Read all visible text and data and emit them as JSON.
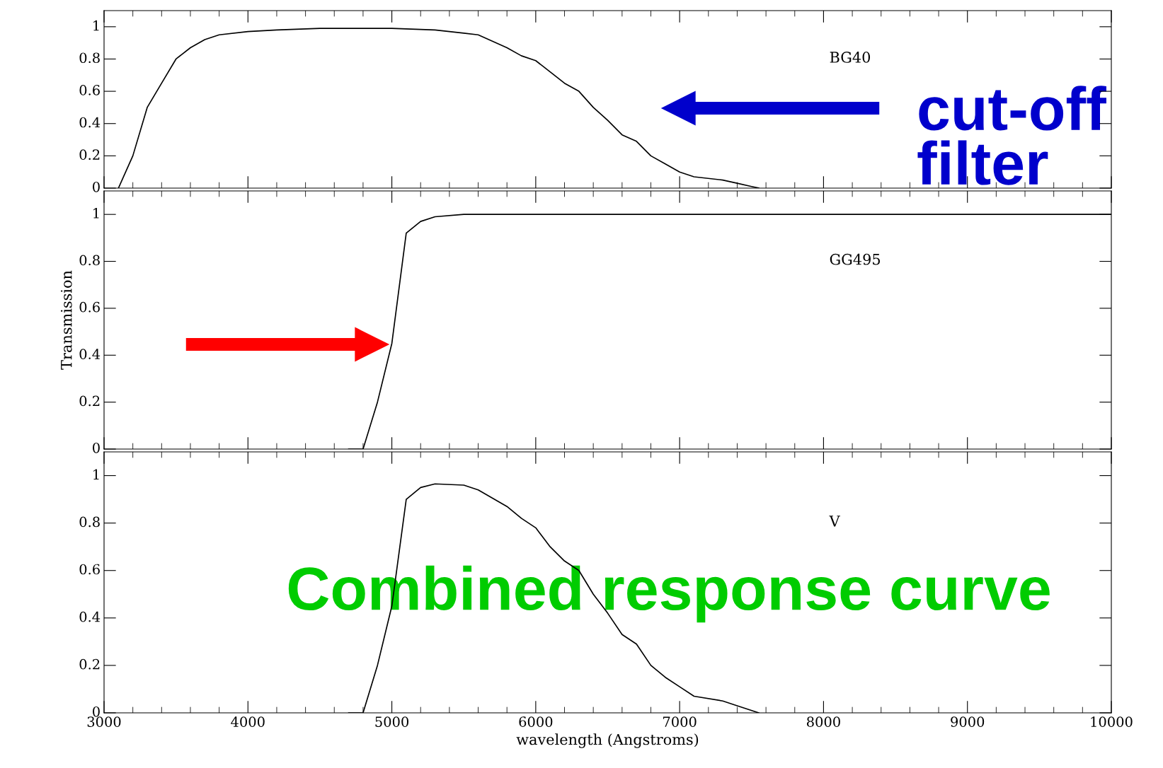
{
  "chart_data": [
    {
      "type": "line",
      "x": [
        3100,
        3200,
        3300,
        3400,
        3500,
        3600,
        3700,
        3800,
        4000,
        4200,
        4500,
        5000,
        5300,
        5500,
        5600,
        5800,
        5900,
        6000,
        6100,
        6200,
        6300,
        6400,
        6500,
        6600,
        6700,
        6800,
        6900,
        7000,
        7100,
        7300,
        7400,
        7500,
        7550
      ],
      "series": [
        {
          "color": "#000000",
          "values": [
            0,
            0.2,
            0.5,
            0.65,
            0.8,
            0.87,
            0.92,
            0.95,
            0.97,
            0.98,
            0.99,
            0.99,
            0.98,
            0.96,
            0.95,
            0.87,
            0.82,
            0.79,
            0.72,
            0.65,
            0.6,
            0.5,
            0.42,
            0.33,
            0.29,
            0.2,
            0.15,
            0.1,
            0.07,
            0.05,
            0.03,
            0.01,
            0
          ]
        }
      ],
      "xlim": [
        3000,
        10000
      ],
      "xticks": [
        3000,
        4000,
        5000,
        6000,
        7000,
        8000,
        9000,
        10000
      ],
      "ylim": [
        0,
        1.1
      ],
      "yticks": [
        0,
        0.2,
        0.4,
        0.6,
        0.8,
        1
      ],
      "tick_labels": "y",
      "annotations": [
        "BG40",
        "cut-off\nfilter"
      ]
    },
    {
      "type": "line",
      "x": [
        4700,
        4800,
        4900,
        5000,
        5100,
        5200,
        5300,
        5500,
        10000
      ],
      "series": [
        {
          "color": "#000000",
          "values": [
            0,
            0,
            0.2,
            0.45,
            0.92,
            0.97,
            0.99,
            1.0,
            1.0
          ]
        }
      ],
      "xlim": [
        3000,
        10000
      ],
      "xticks": [
        3000,
        4000,
        5000,
        6000,
        7000,
        8000,
        9000,
        10000
      ],
      "ylim": [
        0,
        1.1
      ],
      "yticks": [
        0,
        0.2,
        0.4,
        0.6,
        0.8,
        1
      ],
      "tick_labels": "y",
      "ylabel": "Transmission",
      "annotations": [
        "GG495"
      ]
    },
    {
      "type": "line",
      "x": [
        4700,
        4800,
        4900,
        5000,
        5100,
        5200,
        5300,
        5500,
        5600,
        5800,
        5900,
        6000,
        6100,
        6200,
        6300,
        6400,
        6500,
        6600,
        6700,
        6800,
        6900,
        7000,
        7100,
        7300,
        7400,
        7550
      ],
      "series": [
        {
          "color": "#000000",
          "values": [
            0,
            0,
            0.2,
            0.45,
            0.9,
            0.95,
            0.965,
            0.96,
            0.94,
            0.87,
            0.82,
            0.78,
            0.7,
            0.64,
            0.6,
            0.5,
            0.42,
            0.33,
            0.29,
            0.2,
            0.15,
            0.11,
            0.07,
            0.05,
            0.03,
            0
          ]
        }
      ],
      "xlim": [
        3000,
        10000
      ],
      "xticks": [
        3000,
        4000,
        5000,
        6000,
        7000,
        8000,
        9000,
        10000
      ],
      "ylim": [
        0,
        1.1
      ],
      "yticks": [
        0,
        0.2,
        0.4,
        0.6,
        0.8,
        1
      ],
      "xlabel": "wavelength (Angstroms)",
      "annotations": [
        "V",
        "Combined response curve"
      ]
    }
  ]
}
